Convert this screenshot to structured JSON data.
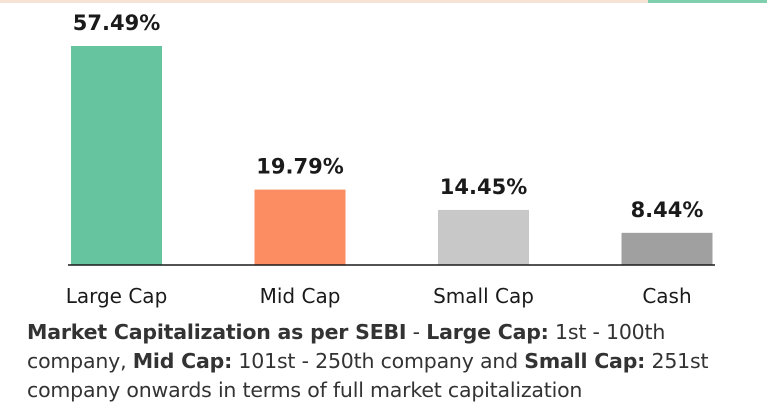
{
  "chart_data": {
    "type": "bar",
    "categories": [
      "Large Cap",
      "Mid Cap",
      "Small Cap",
      "Cash"
    ],
    "values": [
      57.49,
      19.79,
      14.45,
      8.44
    ],
    "value_labels": [
      "57.49%",
      "19.79%",
      "14.45%",
      "8.44%"
    ],
    "colors": [
      "#66c59f",
      "#fc8d62",
      "#c8c8c8",
      "#a0a0a0"
    ],
    "ylim": [
      0,
      57.49
    ],
    "grid": false,
    "legend": "none"
  },
  "footnote": {
    "part1_bold": "Market Capitalization as per SEBI",
    "part2": " - ",
    "part3_bold": "Large Cap:",
    "part4": " 1st - 100th company, ",
    "part5_bold": "Mid Cap:",
    "part6": " 101st - 250th company and ",
    "part7_bold": "Small Cap:",
    "part8": " 251st company onwards in terms of full market capitalization"
  }
}
